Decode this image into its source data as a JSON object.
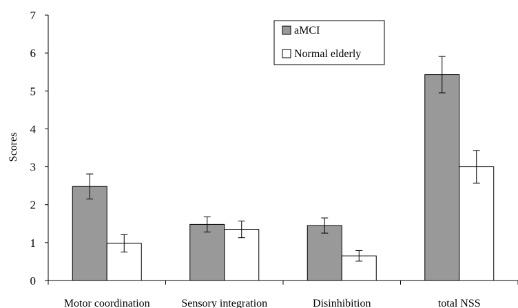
{
  "chart_data": {
    "type": "bar",
    "categories": [
      "Motor coordination",
      "Sensory integration",
      "Disinhibition",
      "total NSS"
    ],
    "series": [
      {
        "name": "aMCI",
        "color": "#999999",
        "values": [
          2.48,
          1.48,
          1.45,
          5.43
        ],
        "error": [
          0.33,
          0.2,
          0.2,
          0.48
        ]
      },
      {
        "name": "Normal elderly",
        "color": "#ffffff",
        "values": [
          0.98,
          1.35,
          0.65,
          3.0
        ],
        "error": [
          0.23,
          0.22,
          0.14,
          0.43
        ]
      }
    ],
    "ylabel": "Scores",
    "xlabel": "",
    "ylim": [
      0,
      7
    ],
    "yticks": [
      0,
      1,
      2,
      3,
      4,
      5,
      6,
      7
    ],
    "grid": false,
    "legend": "top-center"
  }
}
